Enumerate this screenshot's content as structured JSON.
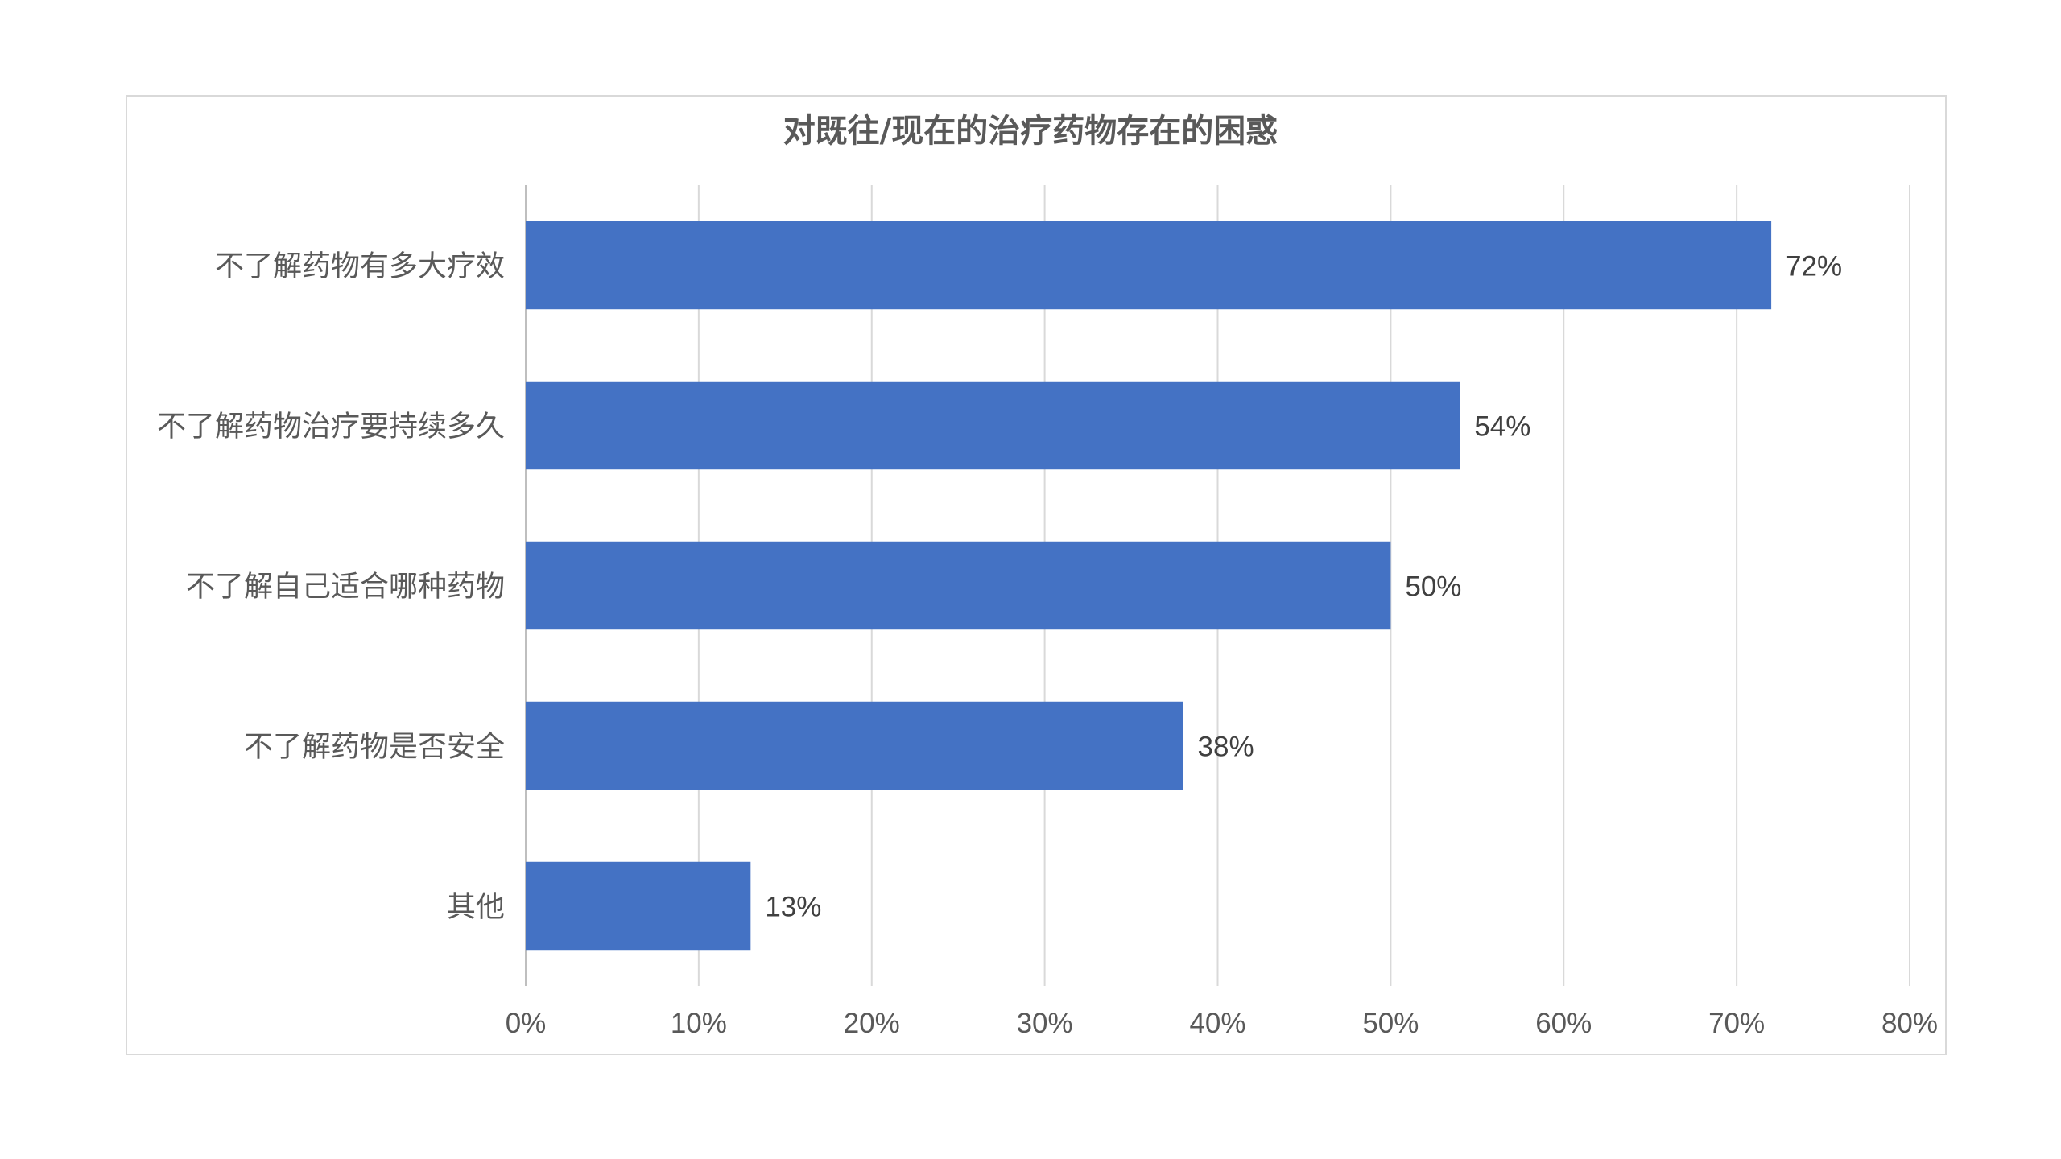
{
  "chart_data": {
    "type": "bar",
    "orientation": "horizontal",
    "title": "对既往/现在的治疗药物存在的困惑",
    "categories": [
      "不了解药物有多大疗效",
      "不了解药物治疗要持续多久",
      "不了解自己适合哪种药物",
      "不了解药物是否安全",
      "其他"
    ],
    "values": [
      72,
      54,
      50,
      38,
      13
    ],
    "data_labels": [
      "72%",
      "54%",
      "50%",
      "38%",
      "13%"
    ],
    "x_ticks": [
      "0%",
      "10%",
      "20%",
      "30%",
      "40%",
      "50%",
      "60%",
      "70%",
      "80%"
    ],
    "xlim": [
      0,
      80
    ],
    "value_unit": "%",
    "grid": "vertical",
    "legend": "none",
    "bar_color": "#4472c4"
  }
}
